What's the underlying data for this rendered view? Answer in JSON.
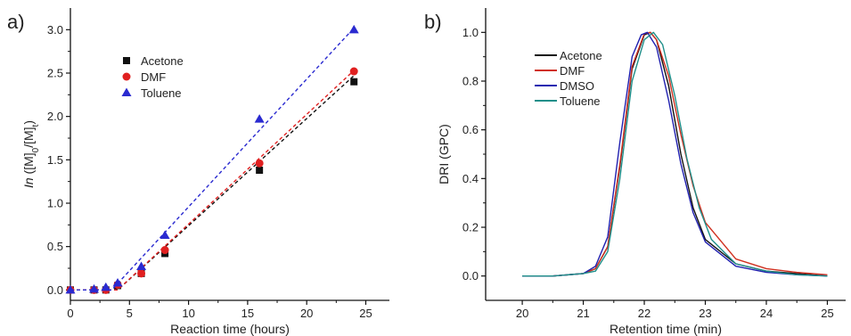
{
  "chart_data": [
    {
      "type": "scatter",
      "panel_label": "a)",
      "xlabel": "Reaction time (hours)",
      "ylabel_parts": {
        "pre": "In",
        "open": " ([M]",
        "sub0": "0",
        "mid": "/[M]",
        "subt": "t",
        "close": ")"
      },
      "xlim": [
        0,
        27
      ],
      "ylim": [
        -0.12,
        3.25
      ],
      "xticks": [
        0,
        5,
        10,
        15,
        20,
        25
      ],
      "yticks": [
        0.0,
        0.5,
        1.0,
        1.5,
        2.0,
        2.5,
        3.0
      ],
      "xtick_labels": [
        "0",
        "5",
        "10",
        "15",
        "20",
        "25"
      ],
      "ytick_labels": [
        "0.0",
        "0.5",
        "1.0",
        "1.5",
        "2.0",
        "2.5",
        "3.0"
      ],
      "legend_position": "top-left",
      "series": [
        {
          "name": "Acetone",
          "marker": "square",
          "color": "#111111",
          "x": [
            0,
            2,
            3,
            4,
            6,
            8,
            16,
            24
          ],
          "y": [
            0.0,
            0.0,
            0.0,
            0.05,
            0.19,
            0.42,
            1.38,
            2.4
          ],
          "fit": [
            [
              0,
              0.0
            ],
            [
              4,
              0.0
            ],
            [
              24,
              2.47
            ]
          ]
        },
        {
          "name": "DMF",
          "marker": "circle",
          "color": "#e02020",
          "x": [
            0,
            2,
            3,
            4,
            6,
            8,
            16,
            24
          ],
          "y": [
            0.0,
            0.0,
            0.0,
            0.06,
            0.19,
            0.46,
            1.46,
            2.52
          ],
          "fit": [
            [
              0,
              0.0
            ],
            [
              4,
              0.0
            ],
            [
              24,
              2.53
            ]
          ]
        },
        {
          "name": "Toluene",
          "marker": "triangle",
          "color": "#2a2ad0",
          "x": [
            0,
            2,
            3,
            4,
            6,
            8,
            16,
            24
          ],
          "y": [
            0.0,
            0.01,
            0.03,
            0.08,
            0.27,
            0.63,
            1.97,
            3.0
          ],
          "fit": [
            [
              0,
              0.0
            ],
            [
              3.5,
              0.0
            ],
            [
              24,
              3.02
            ]
          ]
        }
      ]
    },
    {
      "type": "line",
      "panel_label": "b)",
      "xlabel": "Retention time (min)",
      "ylabel": "DRI (GPC)",
      "xlim": [
        19.4,
        25.3
      ],
      "ylim": [
        -0.1,
        1.1
      ],
      "xticks": [
        20,
        21,
        22,
        23,
        24,
        25
      ],
      "yticks": [
        0.0,
        0.2,
        0.4,
        0.6,
        0.8,
        1.0
      ],
      "xtick_labels": [
        "20",
        "21",
        "22",
        "23",
        "24",
        "25"
      ],
      "ytick_labels": [
        "0.0",
        "0.2",
        "0.4",
        "0.6",
        "0.8",
        "1.0"
      ],
      "legend_position": "top-left",
      "series": [
        {
          "name": "Acetone",
          "color": "#111111",
          "x": [
            20.0,
            20.5,
            21.0,
            21.2,
            21.4,
            21.6,
            21.8,
            22.0,
            22.1,
            22.2,
            22.4,
            22.6,
            22.8,
            23.0,
            23.5,
            24.0,
            24.5,
            25.0
          ],
          "y": [
            0.0,
            0.0,
            0.01,
            0.03,
            0.12,
            0.45,
            0.85,
            0.99,
            1.0,
            0.97,
            0.78,
            0.5,
            0.28,
            0.15,
            0.05,
            0.02,
            0.01,
            0.0
          ]
        },
        {
          "name": "DMF",
          "color": "#d03020",
          "x": [
            20.0,
            20.5,
            21.0,
            21.2,
            21.4,
            21.6,
            21.8,
            22.0,
            22.1,
            22.2,
            22.4,
            22.6,
            22.8,
            23.0,
            23.5,
            24.0,
            24.5,
            25.0
          ],
          "y": [
            0.0,
            0.0,
            0.01,
            0.03,
            0.12,
            0.46,
            0.86,
            0.995,
            1.0,
            0.97,
            0.82,
            0.58,
            0.37,
            0.22,
            0.07,
            0.03,
            0.015,
            0.005
          ]
        },
        {
          "name": "DMSO",
          "color": "#2020b0",
          "x": [
            20.0,
            20.5,
            21.0,
            21.2,
            21.4,
            21.6,
            21.8,
            21.95,
            22.05,
            22.2,
            22.4,
            22.6,
            22.8,
            23.0,
            23.5,
            24.0,
            24.5,
            25.0
          ],
          "y": [
            0.0,
            0.0,
            0.01,
            0.04,
            0.16,
            0.55,
            0.9,
            0.99,
            1.0,
            0.94,
            0.72,
            0.46,
            0.26,
            0.14,
            0.04,
            0.015,
            0.005,
            0.0
          ]
        },
        {
          "name": "Toluene",
          "color": "#1f8f8a",
          "x": [
            20.0,
            20.5,
            21.0,
            21.2,
            21.4,
            21.6,
            21.8,
            22.0,
            22.15,
            22.3,
            22.5,
            22.7,
            22.9,
            23.1,
            23.5,
            24.0,
            24.5,
            25.0
          ],
          "y": [
            0.0,
            0.0,
            0.01,
            0.02,
            0.1,
            0.4,
            0.8,
            0.97,
            1.0,
            0.95,
            0.74,
            0.48,
            0.28,
            0.15,
            0.05,
            0.02,
            0.005,
            0.0
          ]
        }
      ]
    }
  ]
}
